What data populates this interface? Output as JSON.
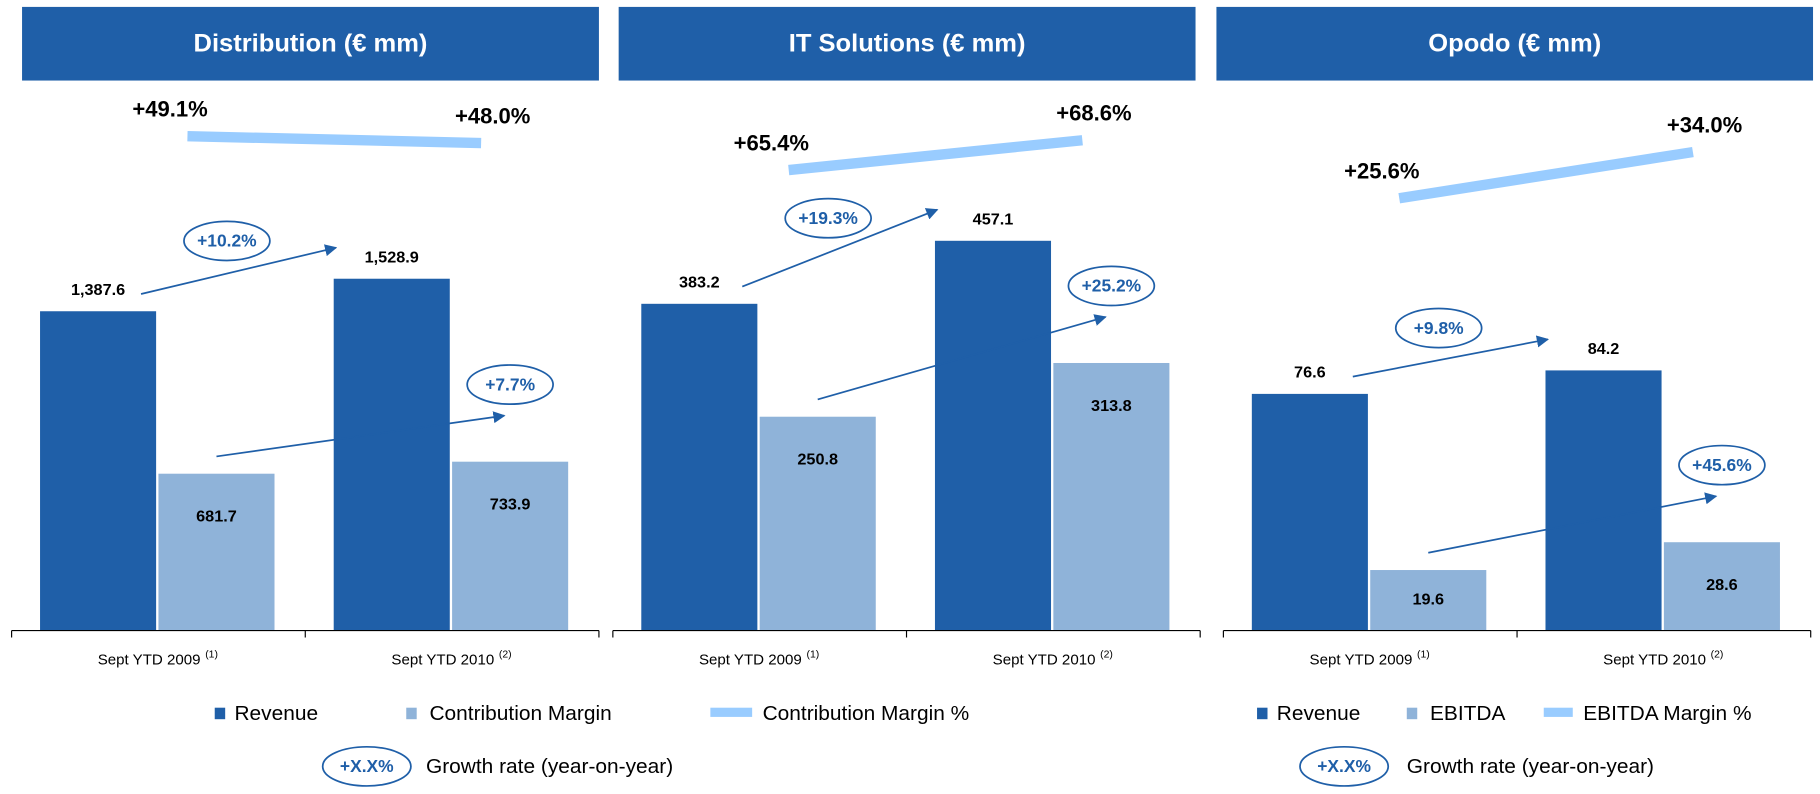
{
  "chart_data": [
    {
      "type": "bar",
      "title": "Distribution (€ mm)",
      "categories": [
        "Sept YTD 2009",
        "Sept YTD 2010"
      ],
      "category_notes": [
        "(1)",
        "(2)"
      ],
      "series": [
        {
          "name": "Revenue",
          "color": "#1f5fa8",
          "values": [
            1387.6,
            1528.9
          ],
          "value_labels": [
            "1,387.6",
            "1,528.9"
          ]
        },
        {
          "name": "Contribution Margin",
          "color": "#8fb3d9",
          "values": [
            681.7,
            733.9
          ]
        },
        {
          "name": "Contribution Margin %",
          "color": "#99ccff",
          "type": "line",
          "axis": "y2",
          "values": [
            49.1,
            48.0
          ],
          "value_labels": [
            "+49.1%",
            "+48.0%"
          ]
        }
      ],
      "annotations": [
        "+10.2%",
        "+7.7%"
      ],
      "ylim": [
        0,
        2390
      ],
      "y2lim": [
        -30,
        58
      ]
    },
    {
      "type": "bar",
      "title": "IT Solutions (€ mm)",
      "categories": [
        "Sept YTD 2009",
        "Sept YTD 2010"
      ],
      "category_notes": [
        "(1)",
        "(2)"
      ],
      "series": [
        {
          "name": "Revenue",
          "color": "#1f5fa8",
          "values": [
            383.2,
            457.1
          ]
        },
        {
          "name": "Contribution Margin",
          "color": "#8fb3d9",
          "values": [
            250.8,
            313.8
          ]
        },
        {
          "name": "Contribution Margin %",
          "color": "#99ccff",
          "type": "line",
          "axis": "y2",
          "values": [
            65.4,
            68.6
          ],
          "value_labels": [
            "+65.4%",
            "+68.6%"
          ]
        }
      ],
      "annotations": [
        "+19.3%",
        "+25.2%"
      ],
      "ylim": [
        0,
        645
      ],
      "y2lim": [
        16,
        75
      ]
    },
    {
      "type": "bar",
      "title": "Opodo (€ mm)",
      "categories": [
        "Sept YTD 2009",
        "Sept YTD 2010"
      ],
      "category_notes": [
        "(1)",
        "(2)"
      ],
      "series": [
        {
          "name": "Revenue",
          "color": "#1f5fa8",
          "values": [
            76.6,
            84.2
          ]
        },
        {
          "name": "EBITDA",
          "color": "#8fb3d9",
          "values": [
            19.6,
            28.6
          ]
        },
        {
          "name": "EBITDA Margin %",
          "color": "#99ccff",
          "type": "line",
          "axis": "y2",
          "values": [
            25.6,
            34.0
          ],
          "value_labels": [
            "+25.6%",
            "+34.0%"
          ]
        }
      ],
      "annotations": [
        "+9.8%",
        "+45.6%"
      ],
      "ylim": [
        0,
        178
      ],
      "y2lim": [
        -53,
        47
      ]
    }
  ],
  "growth_key": {
    "symbol": "+X.X%",
    "text": "Growth rate (year-on-year)"
  }
}
